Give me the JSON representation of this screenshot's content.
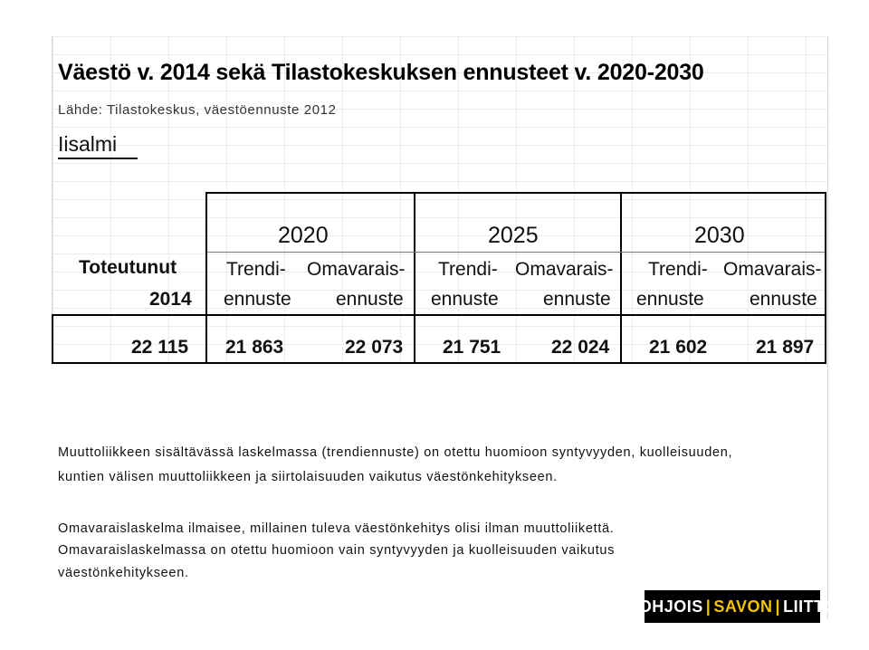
{
  "title": "Väestö v. 2014 sekä Tilastokeskuksen ennusteet v. 2020-2030",
  "source": "Lähde: Tilastokeskus, väestöennuste 2012",
  "region": "Iisalmi",
  "table": {
    "actual_header_line1": "Toteutunut",
    "actual_header_line2": "2014",
    "years": [
      "2020",
      "2025",
      "2030"
    ],
    "sub_trend_line1": "Trendi-",
    "sub_trend_line2": "ennuste",
    "sub_self_line1": "Omavarais-",
    "sub_self_line2": "ennuste",
    "values": [
      "22 115",
      "21 863",
      "22 073",
      "21 751",
      "22 024",
      "21 602",
      "21 897"
    ]
  },
  "notes": {
    "p1_line1": "Muuttoliikkeen sisältävässä laskelmassa (trendiennuste) on otettu huomioon syntyvyyden, kuolleisuuden,",
    "p1_line2": "kuntien välisen muuttoliikkeen ja siirtolaisuuden vaikutus väestönkehitykseen.",
    "p2_line1": "Omavaraislaskelma ilmaisee, millainen tuleva väestönkehitys olisi ilman muuttoliikettä.",
    "p2_line2": "Omavaraislaskelmassa on otettu huomioon vain syntyvyyden ja kuolleisuuden vaikutus",
    "p2_line3": "väestönkehitykseen."
  },
  "logo": {
    "part1": "POHJOIS",
    "sep1": "|",
    "part2": "SAVON",
    "sep2": "|",
    "part3": "LIITTO"
  }
}
